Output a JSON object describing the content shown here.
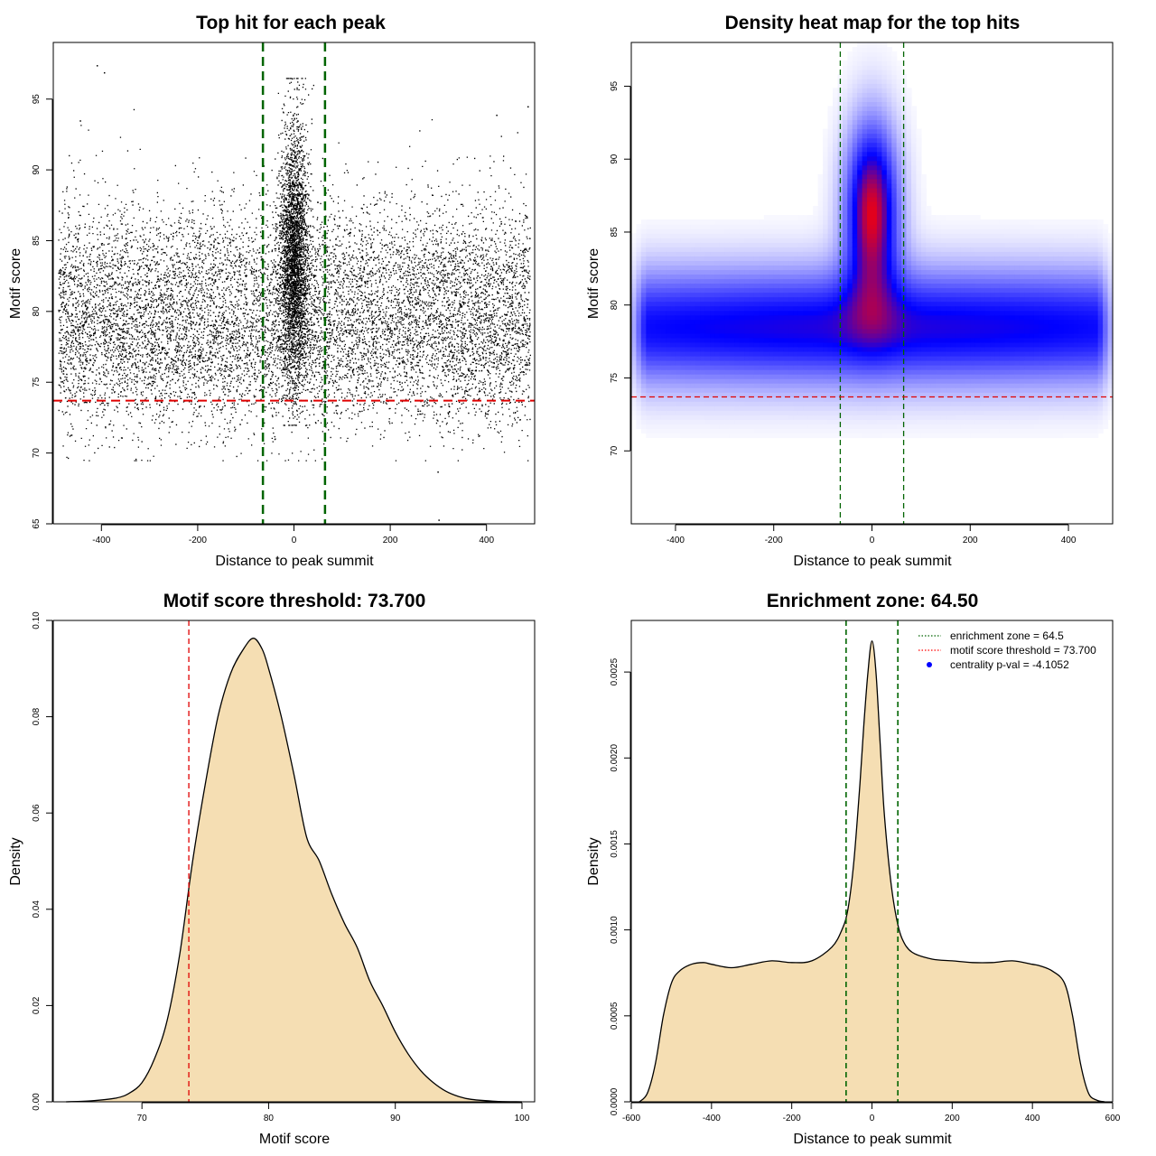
{
  "chart_data": [
    {
      "id": "scatter",
      "type": "scatter",
      "title": "Top hit for each peak",
      "xlabel": "Distance to peak summit",
      "ylabel": "Motif score",
      "xlim": [
        -500,
        500
      ],
      "ylim": [
        65,
        99
      ],
      "xticks": [
        -400,
        -200,
        0,
        200,
        400
      ],
      "yticks": [
        65,
        70,
        75,
        80,
        85,
        90,
        95
      ],
      "vlines": [
        -64.5,
        64.5
      ],
      "hline": 73.7,
      "point_color": "#000000",
      "background_band": {
        "x": [
          -490,
          490
        ],
        "y_mean": 78.5,
        "y_sd": 3.2
      },
      "central_cluster": {
        "x_mean": 0,
        "x_sd": 15,
        "y_mean": 84,
        "y_sd": 4.5
      },
      "outliers": [
        [
          -410,
          97.4
        ],
        [
          -395,
          96.9
        ],
        [
          298,
          68.7
        ],
        [
          300,
          65.3
        ],
        [
          -445,
          93.5
        ],
        [
          420,
          93.9
        ],
        [
          485,
          94.5
        ]
      ]
    },
    {
      "id": "heatmap",
      "type": "heatmap",
      "title": "Density heat map for the top hits",
      "xlabel": "Distance to peak summit",
      "ylabel": "Motif score",
      "xlim": [
        -490,
        490
      ],
      "ylim": [
        65,
        98
      ],
      "xticks": [
        -400,
        -200,
        0,
        200,
        400
      ],
      "yticks": [
        70,
        75,
        80,
        85,
        90,
        95
      ],
      "vlines": [
        -64.5,
        64.5
      ],
      "hline": 73.7,
      "colors": [
        "#ffffff",
        "#0000ff",
        "#ff0000"
      ],
      "components": [
        {
          "x_mean": 0,
          "x_sd": 1000,
          "y_mean": 78.5,
          "y_sd": 2.8,
          "weight": 0.75
        },
        {
          "x_mean": 0,
          "x_sd": 38,
          "y_mean": 86.5,
          "y_sd": 4.2,
          "weight": 1.05
        }
      ]
    },
    {
      "id": "score-density",
      "type": "area",
      "title": "Motif score threshold: 73.700",
      "xlabel": "Motif score",
      "ylabel": "Density",
      "xlim": [
        63,
        101
      ],
      "ylim": [
        0,
        0.1
      ],
      "xticks": [
        70,
        80,
        90,
        100
      ],
      "yticks": [
        0.0,
        0.02,
        0.04,
        0.06,
        0.08,
        0.1
      ],
      "ytick_labels": [
        "0.00",
        "0.02",
        "0.04",
        "0.06",
        "0.08",
        "0.10"
      ],
      "vline": 73.7,
      "fill": "#f5deb3",
      "x": [
        64,
        66,
        68,
        69,
        70,
        71,
        72,
        73,
        74,
        75,
        76,
        77,
        78,
        78.8,
        79.5,
        80,
        81,
        82,
        83,
        84,
        85,
        86,
        87,
        88,
        89,
        90,
        91,
        92,
        93,
        94,
        95,
        96,
        98,
        100
      ],
      "y": [
        0.0,
        0.0002,
        0.0008,
        0.0018,
        0.004,
        0.009,
        0.017,
        0.031,
        0.05,
        0.066,
        0.08,
        0.089,
        0.094,
        0.0963,
        0.094,
        0.09,
        0.08,
        0.068,
        0.055,
        0.05,
        0.043,
        0.037,
        0.032,
        0.025,
        0.02,
        0.0145,
        0.01,
        0.0065,
        0.004,
        0.0022,
        0.0011,
        0.0005,
        0.0001,
        0.0
      ]
    },
    {
      "id": "distance-density",
      "type": "area",
      "title": "Enrichment zone: 64.50",
      "xlabel": "Distance to peak summit",
      "ylabel": "Density",
      "xlim": [
        -600,
        600
      ],
      "ylim": [
        0,
        0.0028
      ],
      "xticks": [
        -600,
        -400,
        -200,
        0,
        200,
        400,
        600
      ],
      "yticks": [
        0.0,
        0.0005,
        0.001,
        0.0015,
        0.002,
        0.0025
      ],
      "ytick_labels": [
        "0.0000",
        "0.0005",
        "0.0010",
        "0.0015",
        "0.0020",
        "0.0025"
      ],
      "vlines": [
        -64.5,
        64.5
      ],
      "fill": "#f5deb3",
      "x": [
        -580,
        -560,
        -540,
        -520,
        -500,
        -480,
        -450,
        -420,
        -400,
        -350,
        -300,
        -250,
        -200,
        -150,
        -100,
        -75,
        -60,
        -45,
        -30,
        -20,
        -10,
        0,
        10,
        20,
        30,
        45,
        60,
        75,
        100,
        150,
        200,
        250,
        300,
        350,
        400,
        420,
        450,
        480,
        500,
        520,
        540,
        560,
        580
      ],
      "y": [
        0.0,
        5e-05,
        0.00022,
        0.0005,
        0.00069,
        0.00076,
        0.0008,
        0.00081,
        0.0008,
        0.00078,
        0.0008,
        0.00082,
        0.00081,
        0.00082,
        0.0009,
        0.001,
        0.00112,
        0.0014,
        0.00185,
        0.0022,
        0.0025,
        0.00268,
        0.0025,
        0.0021,
        0.0017,
        0.00132,
        0.00108,
        0.00095,
        0.00087,
        0.00083,
        0.00082,
        0.00081,
        0.00081,
        0.00082,
        0.0008,
        0.00079,
        0.00076,
        0.00069,
        0.0005,
        0.00022,
        5e-05,
        1e-05,
        0.0
      ],
      "legend": [
        {
          "label": "enrichment zone = 64.5",
          "symbol": "dotted-line",
          "color": "#006400"
        },
        {
          "label": "motif score threshold = 73.700",
          "symbol": "dotted-line",
          "color": "#ff0000"
        },
        {
          "label": "centrality p-val = -4.1052",
          "symbol": "point",
          "color": "#0000ff"
        }
      ],
      "legend_position": "top-right"
    }
  ]
}
